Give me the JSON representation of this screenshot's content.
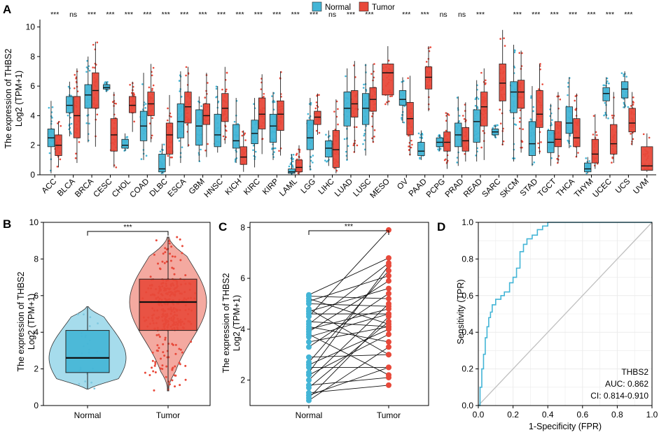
{
  "panels": {
    "A": "A",
    "B": "B",
    "C": "C",
    "D": "D"
  },
  "colors": {
    "normal": "#43b5d6",
    "tumor": "#e8493a",
    "normal_light": "#a6dcec",
    "tumor_light": "#f4a9a0",
    "roc": "#43b5d6",
    "diag": "#c0c0c0",
    "grid": "#ebebeb"
  },
  "chart_data": [
    {
      "type": "box",
      "panel": "A",
      "ylabel_line1": "The expression of THBS2",
      "ylabel_line2": "Log2 (TPM+1)",
      "ylim": [
        0,
        10.5
      ],
      "yticks": [
        "0",
        "2",
        "4",
        "6",
        "8",
        "10"
      ],
      "legend": [
        "Normal",
        "Tumor"
      ],
      "categories": [
        "ACC",
        "BLCA",
        "BRCA",
        "CESC",
        "CHOL",
        "COAD",
        "DLBC",
        "ESCA",
        "GBM",
        "HNSC",
        "KICH",
        "KIRC",
        "KIRP",
        "LAML",
        "LGG",
        "LIHC",
        "LUAD",
        "LUSC",
        "MESO",
        "OV",
        "PAAD",
        "PCPG",
        "PRAD",
        "READ",
        "SARC",
        "SKCM",
        "STAD",
        "TGCT",
        "THCA",
        "THYM",
        "UCEC",
        "UCS",
        "UVM"
      ],
      "significance": [
        "***",
        "ns",
        "***",
        "***",
        "***",
        "***",
        "***",
        "***",
        "***",
        "***",
        "***",
        "***",
        "***",
        "***",
        "***",
        "ns",
        "***",
        "***",
        "",
        "***",
        "***",
        "ns",
        "ns",
        "***",
        "",
        "***",
        "***",
        "***",
        "***",
        "***",
        "***",
        "***",
        ""
      ],
      "normal": [
        [
          0.1,
          1.9,
          2.5,
          3.1,
          5.0
        ],
        [
          2.6,
          4.2,
          4.7,
          5.3,
          6.3
        ],
        [
          2.2,
          4.5,
          5.4,
          6.1,
          8.0
        ],
        [
          5.6,
          5.8,
          5.9,
          6.1,
          6.3
        ],
        [
          1.6,
          1.8,
          2.0,
          2.4,
          2.8
        ],
        [
          1.0,
          2.3,
          3.3,
          4.3,
          6.9
        ],
        [
          0.1,
          0.2,
          0.4,
          1.4,
          2.1
        ],
        [
          0.8,
          2.5,
          3.6,
          4.8,
          7.0
        ],
        [
          0.9,
          2.0,
          3.3,
          4.4,
          5.3
        ],
        [
          1.5,
          1.9,
          2.7,
          4.1,
          6.0
        ],
        [
          0.8,
          1.8,
          2.3,
          3.4,
          5.2
        ],
        [
          0.5,
          2.1,
          2.8,
          3.7,
          5.2
        ],
        [
          1.0,
          2.2,
          3.3,
          4.1,
          5.6
        ],
        [
          0.0,
          0.1,
          0.2,
          0.4,
          1.4
        ],
        [
          0.3,
          1.7,
          2.5,
          3.7,
          5.2
        ],
        [
          0.6,
          1.2,
          1.8,
          2.3,
          3.0
        ],
        [
          1.0,
          3.3,
          4.5,
          5.6,
          7.2
        ],
        [
          1.3,
          3.4,
          4.5,
          5.5,
          7.5
        ],
        null,
        [
          3.5,
          4.7,
          5.1,
          5.7,
          6.6
        ],
        [
          1.0,
          1.3,
          1.6,
          2.2,
          3.0
        ],
        [
          1.6,
          1.9,
          2.2,
          2.5,
          2.7
        ],
        [
          0.6,
          1.9,
          2.7,
          3.5,
          5.3
        ],
        [
          0.9,
          2.2,
          3.6,
          4.4,
          6.4
        ],
        [
          2.5,
          2.7,
          2.9,
          3.1,
          3.4
        ],
        [
          0.9,
          4.2,
          5.6,
          6.3,
          8.8
        ],
        [
          0.6,
          1.3,
          2.1,
          3.6,
          6.0
        ],
        [
          0.6,
          1.5,
          2.2,
          3.0,
          4.8
        ],
        [
          1.8,
          2.8,
          3.5,
          4.6,
          6.6
        ],
        [
          0.1,
          0.2,
          0.4,
          0.8,
          1.2
        ],
        [
          3.8,
          5.0,
          5.5,
          5.9,
          6.6
        ],
        [
          4.5,
          5.2,
          5.8,
          6.3,
          7.0
        ],
        null
      ],
      "tumor": [
        [
          0.5,
          1.3,
          2.0,
          2.7,
          3.6
        ],
        [
          0.8,
          2.5,
          4.0,
          5.3,
          7.2
        ],
        [
          1.9,
          4.5,
          5.7,
          6.9,
          9.0
        ],
        [
          0.5,
          1.6,
          2.7,
          3.8,
          5.6
        ],
        [
          2.9,
          4.2,
          4.7,
          5.3,
          6.3
        ],
        [
          2.2,
          4.0,
          4.8,
          5.6,
          7.5
        ],
        [
          0.6,
          1.4,
          2.7,
          3.5,
          5.4
        ],
        [
          1.9,
          3.5,
          4.6,
          5.6,
          7.3
        ],
        [
          1.2,
          3.4,
          4.0,
          4.8,
          6.9
        ],
        [
          2.1,
          3.6,
          4.5,
          5.5,
          7.3
        ],
        [
          0.2,
          0.7,
          1.2,
          1.9,
          3.0
        ],
        [
          1.4,
          3.1,
          4.1,
          5.2,
          6.8
        ],
        [
          1.3,
          3.0,
          4.1,
          5.0,
          7.0
        ],
        [
          0.0,
          0.2,
          0.5,
          1.0,
          2.0
        ],
        [
          2.7,
          3.4,
          3.9,
          4.3,
          5.5
        ],
        [
          0.1,
          0.5,
          1.7,
          3.0,
          5.1
        ],
        [
          1.5,
          3.9,
          4.8,
          5.7,
          7.7
        ],
        [
          2.2,
          4.3,
          5.1,
          5.9,
          7.5
        ],
        [
          4.7,
          5.4,
          6.9,
          7.5,
          8.7
        ],
        [
          1.3,
          2.7,
          3.8,
          4.9,
          6.7
        ],
        [
          4.3,
          5.8,
          6.6,
          7.3,
          8.7
        ],
        [
          0.4,
          1.6,
          2.2,
          2.9,
          4.2
        ],
        [
          0.9,
          1.6,
          2.3,
          3.2,
          4.9
        ],
        [
          1.0,
          3.3,
          4.6,
          5.6,
          7.2
        ],
        [
          2.0,
          5.0,
          6.2,
          7.5,
          9.8
        ],
        [
          1.5,
          4.5,
          5.6,
          6.4,
          8.4
        ],
        [
          1.4,
          3.2,
          4.1,
          5.7,
          7.5
        ],
        [
          0.8,
          1.9,
          2.4,
          3.6,
          5.6
        ],
        [
          1.2,
          1.9,
          2.5,
          3.8,
          5.5
        ],
        [
          0.4,
          0.8,
          1.4,
          2.4,
          4.1
        ],
        [
          0.8,
          1.4,
          2.1,
          3.4,
          5.6
        ],
        [
          2.0,
          2.9,
          3.5,
          4.5,
          5.6
        ],
        [
          0.2,
          0.3,
          0.6,
          1.9,
          2.8
        ]
      ]
    },
    {
      "type": "box",
      "panel": "B",
      "ylabel_line1": "The expression of THBS2",
      "ylabel_line2": "Log2 (TPM+1)",
      "ylim": [
        0,
        10
      ],
      "yticks": [
        "0",
        "2",
        "4",
        "6",
        "8",
        "10"
      ],
      "categories": [
        "Normal",
        "Tumor"
      ],
      "significance": "***",
      "normal": [
        0.9,
        1.8,
        2.6,
        4.1,
        5.4
      ],
      "tumor": [
        0.8,
        4.1,
        5.65,
        6.9,
        9.2
      ]
    },
    {
      "type": "paired",
      "panel": "C",
      "ylabel_line1": "The expression of THBS2",
      "ylabel_line2": "Log2 (TPM+1)",
      "ylim": [
        1.0,
        8.2
      ],
      "yticks": [
        "2",
        "4",
        "6",
        "8"
      ],
      "categories": [
        "Normal",
        "Tumor"
      ],
      "significance": "***",
      "pairs": [
        [
          1.2,
          3.3
        ],
        [
          1.3,
          4.5
        ],
        [
          1.4,
          2.5
        ],
        [
          1.5,
          1.8
        ],
        [
          1.7,
          4.3
        ],
        [
          1.8,
          2.1
        ],
        [
          2.0,
          5.0
        ],
        [
          2.2,
          3.8
        ],
        [
          2.3,
          6.5
        ],
        [
          2.5,
          2.5
        ],
        [
          2.6,
          4.0
        ],
        [
          2.7,
          6.3
        ],
        [
          2.9,
          3.0
        ],
        [
          3.3,
          5.4
        ],
        [
          3.5,
          4.1
        ],
        [
          3.7,
          4.6
        ],
        [
          3.8,
          2.2
        ],
        [
          3.9,
          5.9
        ],
        [
          4.0,
          4.8
        ],
        [
          4.1,
          3.5
        ],
        [
          4.2,
          6.6
        ],
        [
          4.3,
          4.1
        ],
        [
          4.5,
          7.9
        ],
        [
          4.6,
          4.6
        ],
        [
          4.7,
          5.6
        ],
        [
          4.8,
          3.0
        ],
        [
          5.0,
          4.9
        ],
        [
          5.1,
          6.1
        ],
        [
          5.2,
          4.2
        ],
        [
          5.3,
          5.2
        ],
        [
          5.35,
          6.8
        ]
      ]
    },
    {
      "type": "roc",
      "panel": "D",
      "xlabel": "1-Specificity (FPR)",
      "ylabel": "Sensitivity (TPR)",
      "xlim": [
        0,
        1
      ],
      "ylim": [
        0,
        1
      ],
      "ticks": [
        "0.0",
        "0.2",
        "0.4",
        "0.6",
        "0.8",
        "1.0"
      ],
      "annotation": [
        "THBS2",
        "AUC: 0.862",
        "CI: 0.814-0.910"
      ],
      "fpr": [
        0,
        0.01,
        0.01,
        0.02,
        0.02,
        0.03,
        0.03,
        0.04,
        0.04,
        0.05,
        0.05,
        0.06,
        0.06,
        0.07,
        0.07,
        0.08,
        0.08,
        0.1,
        0.1,
        0.13,
        0.13,
        0.15,
        0.15,
        0.18,
        0.18,
        0.2,
        0.2,
        0.22,
        0.22,
        0.24,
        0.24,
        0.26,
        0.26,
        0.28,
        0.28,
        0.31,
        0.31,
        0.34,
        0.34,
        0.37,
        0.37,
        0.4,
        0.4,
        1.0
      ],
      "tpr": [
        0,
        0,
        0.1,
        0.1,
        0.2,
        0.2,
        0.28,
        0.28,
        0.37,
        0.37,
        0.43,
        0.43,
        0.48,
        0.48,
        0.51,
        0.51,
        0.55,
        0.55,
        0.58,
        0.58,
        0.6,
        0.6,
        0.62,
        0.62,
        0.67,
        0.67,
        0.7,
        0.7,
        0.75,
        0.75,
        0.84,
        0.84,
        0.88,
        0.88,
        0.91,
        0.91,
        0.93,
        0.93,
        0.96,
        0.96,
        0.98,
        0.98,
        1.0,
        1.0
      ]
    }
  ]
}
